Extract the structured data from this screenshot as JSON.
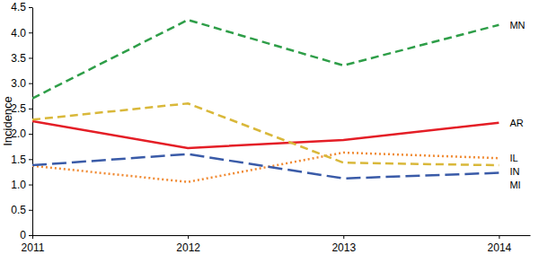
{
  "chart_data": {
    "type": "line",
    "y_label": "Incidence",
    "x": [
      2011,
      2012,
      2013,
      2014
    ],
    "xlim": [
      2011,
      2014.2
    ],
    "xticks": [
      2011,
      2012,
      2013,
      2014
    ],
    "ylim": [
      0,
      4.5
    ],
    "yticks": [
      0,
      0.5,
      {
        "value": 1,
        "label": "1.0"
      },
      1.5,
      {
        "value": 2,
        "label": "2.0"
      },
      2.5,
      {
        "value": 3,
        "label": "3.0"
      },
      3.5,
      {
        "value": 4,
        "label": "4.0"
      },
      4.5
    ],
    "grid": false,
    "series": [
      {
        "name": "MN",
        "color": "#2e9e48",
        "line_style": "dashed",
        "values": [
          2.7,
          4.25,
          3.35,
          4.15
        ]
      },
      {
        "name": "AR",
        "color": "#e41e26",
        "line_style": "solid",
        "values": [
          2.25,
          1.72,
          1.88,
          2.22
        ]
      },
      {
        "name": "IL",
        "color": "#f08a32",
        "line_style": "dotted",
        "values": [
          1.37,
          1.05,
          1.63,
          1.52
        ]
      },
      {
        "name": "IN",
        "color": "#d9b83a",
        "line_style": "dashed",
        "values": [
          2.28,
          2.6,
          1.43,
          1.38
        ]
      },
      {
        "name": "MI",
        "color": "#3a5ba8",
        "line_style": "long_dash",
        "values": [
          1.38,
          1.6,
          1.12,
          1.23
        ]
      }
    ]
  }
}
